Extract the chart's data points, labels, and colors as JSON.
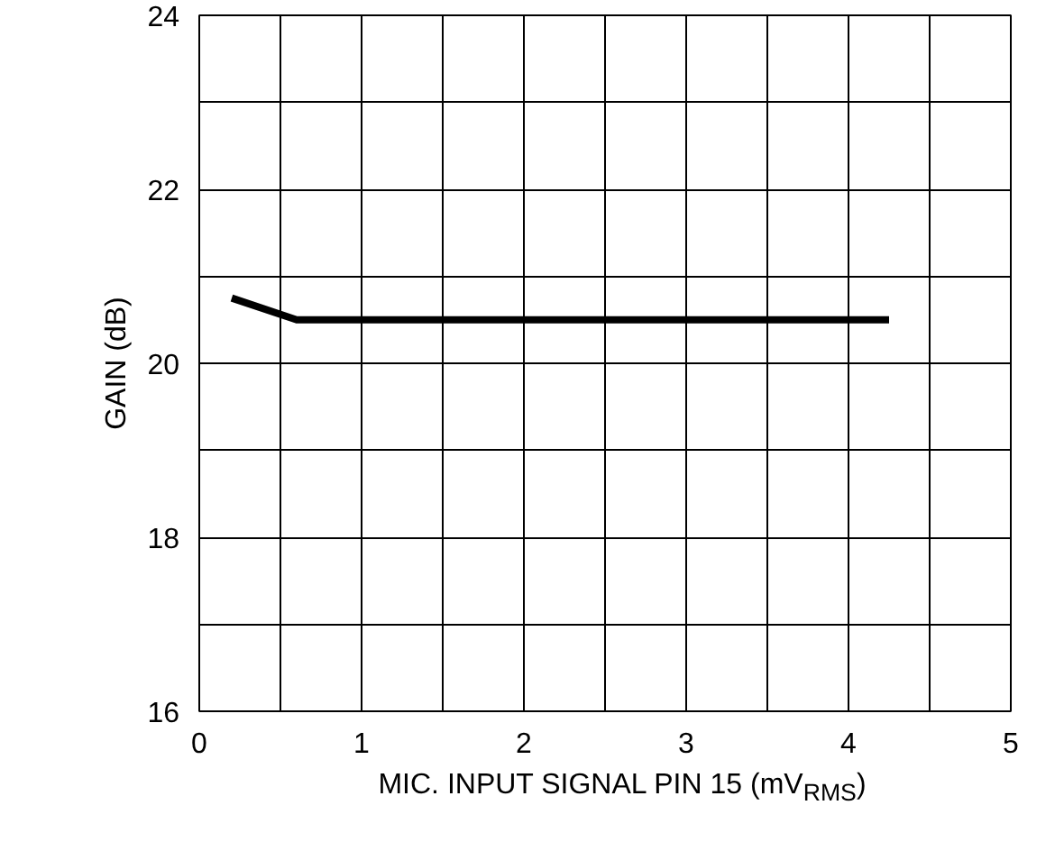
{
  "chart_data": {
    "type": "line",
    "xlabel": "MIC. INPUT SIGNAL PIN 15 (mV$_{RMS}$)",
    "ylabel": "GAIN (dB)",
    "x": [
      0.2,
      0.6,
      4.25
    ],
    "series": [
      {
        "color": "#000000",
        "values": [
          20.75,
          20.5,
          20.5
        ]
      }
    ],
    "xlim": [
      0,
      5
    ],
    "ylim": [
      16,
      24
    ],
    "xticks": [
      0,
      {
        "value": 0.5,
        "label": null
      },
      1,
      {
        "value": 1.5,
        "label": null
      },
      2,
      {
        "value": 2.5,
        "label": null
      },
      3,
      {
        "value": 3.5,
        "label": null
      },
      4,
      {
        "value": 4.5,
        "label": null
      },
      5
    ],
    "yticks": [
      16,
      {
        "value": 17,
        "label": null
      },
      18,
      {
        "value": 19,
        "label": null
      },
      20,
      {
        "value": 21,
        "label": null
      },
      22,
      {
        "value": 23,
        "label": null
      },
      24
    ],
    "grid": true,
    "line_style": "solid",
    "marker": "none"
  }
}
